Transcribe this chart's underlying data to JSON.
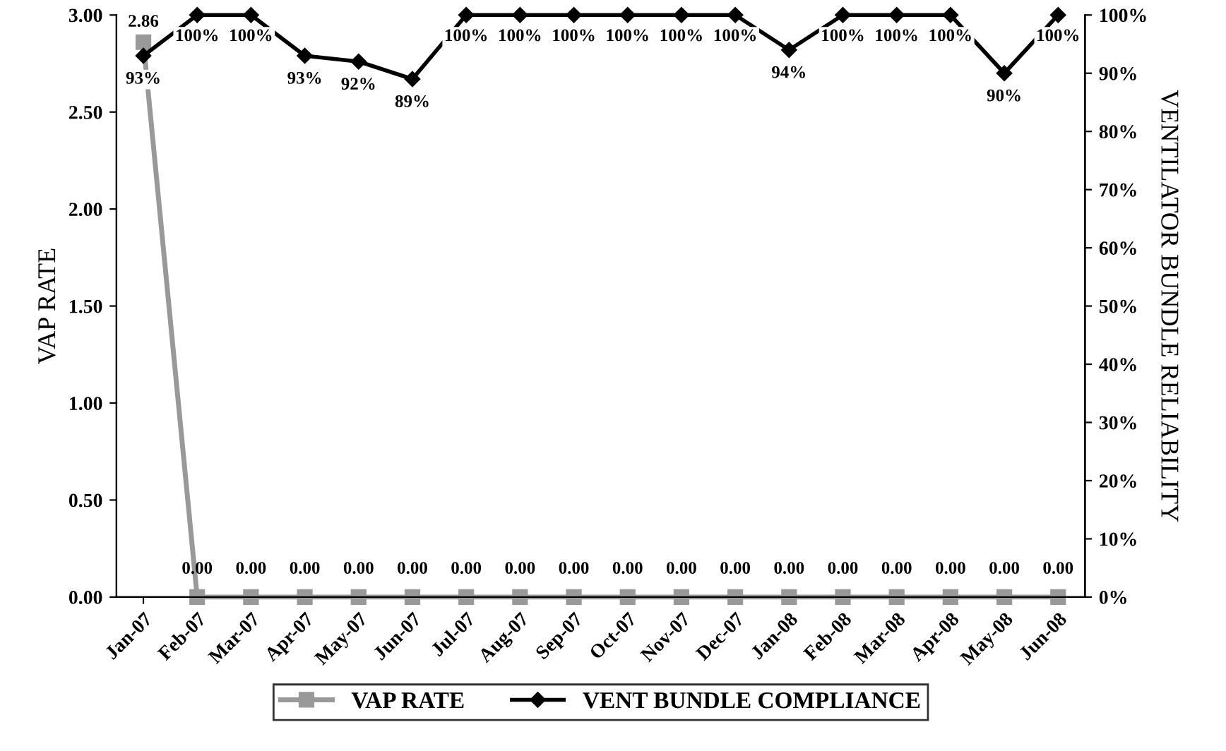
{
  "chart_data": {
    "type": "line",
    "ylabel": "VAP RATE",
    "y2label": "VENTILATOR BUNDLE RELIABILITY",
    "categories": [
      "Jan-07",
      "Feb-07",
      "Mar-07",
      "Apr-07",
      "May-07",
      "Jun-07",
      "Jul-07",
      "Aug-07",
      "Sep-07",
      "Oct-07",
      "Nov-07",
      "Dec-07",
      "Jan-08",
      "Feb-08",
      "Mar-08",
      "Apr-08",
      "May-08",
      "Jun-08"
    ],
    "series": [
      {
        "name": "VAP RATE",
        "color": "#999999",
        "marker": "square",
        "values": [
          2.86,
          0,
          0,
          0,
          0,
          0,
          0,
          0,
          0,
          0,
          0,
          0,
          0,
          0,
          0,
          0,
          0,
          0
        ],
        "value_labels": [
          "2.86",
          "0.00",
          "0.00",
          "0.00",
          "0.00",
          "0.00",
          "0.00",
          "0.00",
          "0.00",
          "0.00",
          "0.00",
          "0.00",
          "0.00",
          "0.00",
          "0.00",
          "0.00",
          "0.00",
          "0.00"
        ]
      },
      {
        "name": "VENT BUNDLE COMPLIANCE",
        "color": "#000000",
        "marker": "diamond",
        "axis": "y2",
        "values": [
          93,
          100,
          100,
          93,
          92,
          89,
          100,
          100,
          100,
          100,
          100,
          100,
          94,
          100,
          100,
          100,
          90,
          100
        ],
        "value_labels": [
          "93%",
          "100%",
          "100%",
          "93%",
          "92%",
          "89%",
          "100%",
          "100%",
          "100%",
          "100%",
          "100%",
          "100%",
          "94%",
          "100%",
          "100%",
          "100%",
          "90%",
          "100%"
        ]
      }
    ],
    "ylim": [
      0,
      3
    ],
    "yticks": [
      {
        "value": 0,
        "label": "0.00"
      },
      {
        "value": 0.5,
        "label": "0.50"
      },
      {
        "value": 1,
        "label": "1.00"
      },
      {
        "value": 1.5,
        "label": "1.50"
      },
      {
        "value": 2,
        "label": "2.00"
      },
      {
        "value": 2.5,
        "label": "2.50"
      },
      {
        "value": 3,
        "label": "3.00"
      }
    ],
    "y2lim": [
      0,
      100
    ],
    "y2ticks": [
      {
        "value": 0,
        "label": "0%"
      },
      {
        "value": 10,
        "label": "10%"
      },
      {
        "value": 20,
        "label": "20%"
      },
      {
        "value": 30,
        "label": "30%"
      },
      {
        "value": 40,
        "label": "40%"
      },
      {
        "value": 50,
        "label": "50%"
      },
      {
        "value": 60,
        "label": "60%"
      },
      {
        "value": 70,
        "label": "70%"
      },
      {
        "value": 80,
        "label": "80%"
      },
      {
        "value": 90,
        "label": "90%"
      },
      {
        "value": 100,
        "label": "100%"
      }
    ],
    "grid": false,
    "legend": "bottom",
    "line_style": "solid"
  }
}
